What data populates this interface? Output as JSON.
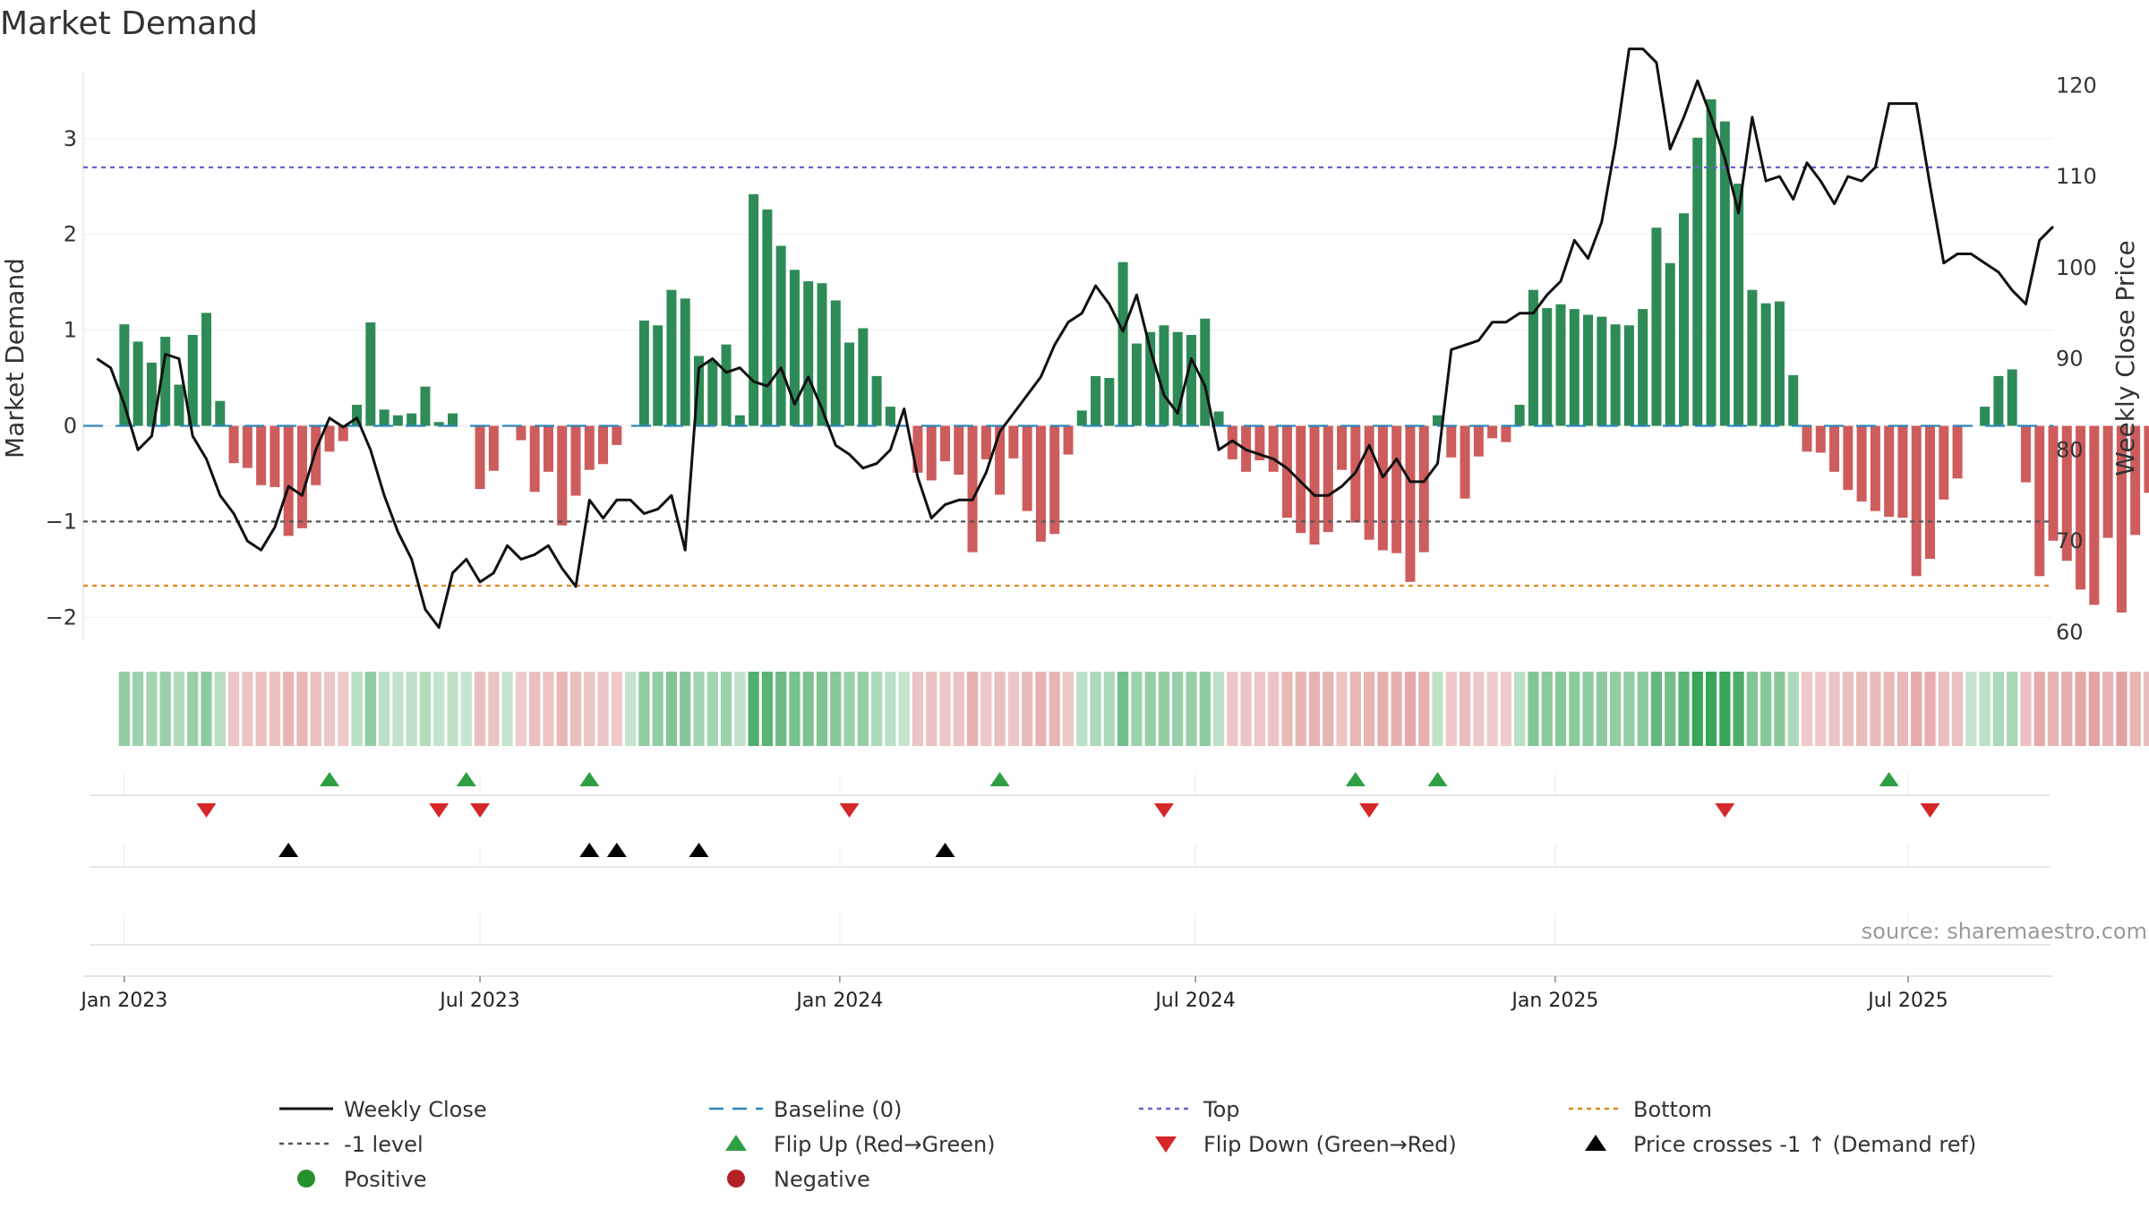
{
  "chart_data": {
    "type": "bar+line",
    "title": "Market Demand",
    "ylabel": "Market Demand",
    "y2label": "Weekly Close Price",
    "ylim": [
      -2.25,
      3.7
    ],
    "y2lim": [
      59,
      121.5
    ],
    "yticks": [
      3,
      2,
      1,
      0,
      -1,
      -2
    ],
    "yticks_labels": [
      "3",
      "2",
      "1",
      "0",
      "−1",
      "−2"
    ],
    "y2ticks": [
      120,
      110,
      100,
      90,
      80,
      70,
      60
    ],
    "xrange_weeks": [
      -3,
      141
    ],
    "xticks": [
      {
        "label": "Jan 2023",
        "week": 0
      },
      {
        "label": "Jul 2023",
        "week": 26
      },
      {
        "label": "Jan 2024",
        "week": 52.3
      },
      {
        "label": "Jul 2024",
        "week": 78.3
      },
      {
        "label": "Jan 2025",
        "week": 104.6
      },
      {
        "label": "Jul 2025",
        "week": 130.4
      }
    ],
    "levels": {
      "top": 2.7,
      "minus_one": -1,
      "bottom": -1.67,
      "baseline": 0
    },
    "demand": [
      1.06,
      0.88,
      0.66,
      0.93,
      0.43,
      0.95,
      1.18,
      0.26,
      -0.39,
      -0.44,
      -0.62,
      -0.64,
      -1.15,
      -1.07,
      -0.62,
      -0.27,
      -0.16,
      0.22,
      1.08,
      0.17,
      0.11,
      0.13,
      0.41,
      0.04,
      0.13,
      0,
      -0.66,
      -0.47,
      0,
      -0.15,
      -0.69,
      -0.48,
      -1.04,
      -0.73,
      -0.46,
      -0.4,
      -0.2,
      0,
      1.1,
      1.05,
      1.42,
      1.33,
      0.73,
      0.68,
      0.85,
      0.11,
      2.42,
      2.26,
      1.88,
      1.63,
      1.51,
      1.49,
      1.31,
      0.87,
      1.02,
      0.52,
      0.2,
      0,
      -0.49,
      -0.57,
      -0.37,
      -0.51,
      -1.32,
      -0.35,
      -0.72,
      -0.34,
      -0.89,
      -1.21,
      -1.13,
      -0.3,
      0.16,
      0.52,
      0.5,
      1.71,
      0.86,
      0.98,
      1.05,
      0.98,
      0.95,
      1.12,
      0.15,
      -0.35,
      -0.48,
      -0.36,
      -0.48,
      -0.96,
      -1.12,
      -1.24,
      -1.11,
      -0.46,
      -1.01,
      -1.19,
      -1.3,
      -1.33,
      -1.63,
      -1.32,
      0.11,
      -0.33,
      -0.76,
      -0.32,
      -0.13,
      -0.17,
      0.22,
      1.42,
      1.23,
      1.27,
      1.22,
      1.16,
      1.14,
      1.06,
      1.05,
      1.22,
      2.07,
      1.7,
      2.22,
      3.01,
      3.41,
      3.18,
      2.53,
      1.42,
      1.28,
      1.3,
      0.53,
      -0.27,
      -0.28,
      -0.48,
      -0.67,
      -0.79,
      -0.89,
      -0.95,
      -0.96,
      -1.57,
      -1.39,
      -0.77,
      -0.55,
      0,
      0.2,
      0.52,
      0.59,
      -0.59,
      -1.57,
      -1.2,
      -1.41,
      -1.71,
      -1.87,
      -1.17,
      -1.95,
      -1.14,
      -0.7
    ],
    "weekly_close": [
      [
        -2,
        90
      ],
      [
        -1,
        89
      ],
      [
        0,
        85
      ],
      [
        1,
        80
      ],
      [
        2,
        81.5
      ],
      [
        3,
        90.5
      ],
      [
        4,
        90
      ],
      [
        5,
        81.5
      ],
      [
        6,
        79
      ],
      [
        7,
        75
      ],
      [
        8,
        73
      ],
      [
        9,
        70
      ],
      [
        10,
        69
      ],
      [
        11,
        71.5
      ],
      [
        12,
        76
      ],
      [
        13,
        75
      ],
      [
        14,
        80
      ],
      [
        15,
        83.5
      ],
      [
        16,
        82.5
      ],
      [
        17,
        83.5
      ],
      [
        18,
        80
      ],
      [
        19,
        75
      ],
      [
        20,
        71
      ],
      [
        21,
        68
      ],
      [
        22,
        62.5
      ],
      [
        23,
        60.5
      ],
      [
        24,
        66.5
      ],
      [
        25,
        68
      ],
      [
        26,
        65.5
      ],
      [
        27,
        66.5
      ],
      [
        28,
        69.5
      ],
      [
        29,
        68
      ],
      [
        30,
        68.5
      ],
      [
        31,
        69.5
      ],
      [
        32,
        67
      ],
      [
        33,
        65
      ],
      [
        34,
        74.5
      ],
      [
        35,
        72.5
      ],
      [
        36,
        74.5
      ],
      [
        37,
        74.5
      ],
      [
        38,
        73
      ],
      [
        39,
        73.5
      ],
      [
        40,
        75
      ],
      [
        41,
        69
      ],
      [
        42,
        89
      ],
      [
        43,
        90
      ],
      [
        44,
        88.5
      ],
      [
        45,
        89
      ],
      [
        46,
        87.5
      ],
      [
        47,
        87
      ],
      [
        48,
        89
      ],
      [
        49,
        85
      ],
      [
        50,
        88
      ],
      [
        51,
        84.5
      ],
      [
        52,
        80.5
      ],
      [
        53,
        79.5
      ],
      [
        54,
        78
      ],
      [
        55,
        78.5
      ],
      [
        56,
        80
      ],
      [
        57,
        84.5
      ],
      [
        58,
        77
      ],
      [
        59,
        72.5
      ],
      [
        60,
        74
      ],
      [
        61,
        74.5
      ],
      [
        62,
        74.5
      ],
      [
        63,
        77.5
      ],
      [
        64,
        82
      ],
      [
        65,
        84
      ],
      [
        66,
        86
      ],
      [
        67,
        88
      ],
      [
        68,
        91.5
      ],
      [
        69,
        94
      ],
      [
        70,
        95
      ],
      [
        71,
        98
      ],
      [
        72,
        96
      ],
      [
        73,
        93
      ],
      [
        74,
        97
      ],
      [
        75,
        91
      ],
      [
        76,
        86
      ],
      [
        77,
        84
      ],
      [
        78,
        90
      ],
      [
        79,
        87
      ],
      [
        80,
        80
      ],
      [
        81,
        81
      ],
      [
        82,
        80
      ],
      [
        83,
        79.5
      ],
      [
        84,
        79
      ],
      [
        85,
        78
      ],
      [
        86,
        76.5
      ],
      [
        87,
        75
      ],
      [
        88,
        75
      ],
      [
        89,
        76
      ],
      [
        90,
        77.5
      ],
      [
        91,
        80.5
      ],
      [
        92,
        77
      ],
      [
        93,
        79
      ],
      [
        94,
        76.5
      ],
      [
        95,
        76.5
      ],
      [
        96,
        78.5
      ],
      [
        97,
        91
      ],
      [
        98,
        91.5
      ],
      [
        99,
        92
      ],
      [
        100,
        94
      ],
      [
        101,
        94
      ],
      [
        102,
        95
      ],
      [
        103,
        95
      ],
      [
        104,
        97
      ],
      [
        105,
        98.5
      ],
      [
        106,
        103
      ],
      [
        107,
        101
      ],
      [
        108,
        105
      ],
      [
        109,
        113.5
      ],
      [
        110,
        124
      ],
      [
        111,
        124
      ],
      [
        112,
        122.5
      ],
      [
        113,
        113
      ],
      [
        114,
        116.5
      ],
      [
        115,
        120.5
      ],
      [
        116,
        116.5
      ],
      [
        117,
        112
      ],
      [
        118,
        106
      ],
      [
        119,
        116.5
      ],
      [
        120,
        109.5
      ],
      [
        121,
        110
      ],
      [
        122,
        107.5
      ],
      [
        123,
        111.5
      ],
      [
        124,
        109.5
      ],
      [
        125,
        107
      ],
      [
        126,
        110
      ],
      [
        127,
        109.5
      ],
      [
        128,
        111
      ],
      [
        129,
        118
      ],
      [
        130,
        118
      ],
      [
        131,
        118
      ],
      [
        132,
        109
      ],
      [
        133,
        100.5
      ],
      [
        134,
        101.5
      ],
      [
        135,
        101.5
      ],
      [
        136,
        100.5
      ],
      [
        137,
        99.5
      ],
      [
        138,
        97.5
      ],
      [
        139,
        96
      ],
      [
        140,
        103
      ],
      [
        141,
        104.5
      ]
    ],
    "flip_up_weeks": [
      15,
      25,
      34,
      64,
      90,
      96,
      129
    ],
    "flip_down_weeks": [
      6,
      23,
      26,
      53,
      76,
      91,
      117,
      132
    ],
    "price_cross_weeks": [
      12,
      34,
      36,
      42,
      60
    ],
    "legend": [
      {
        "label": "Weekly Close",
        "symbol": "line",
        "color": "#111111"
      },
      {
        "label": "Baseline (0)",
        "symbol": "dash",
        "color": "#2e86b9"
      },
      {
        "label": "Top",
        "symbol": "dot",
        "color": "#6666cc"
      },
      {
        "label": "Bottom",
        "symbol": "dot",
        "color": "#e08a1e"
      },
      {
        "label": "-1 level",
        "symbol": "dot",
        "color": "#555555"
      },
      {
        "label": "Flip Up (Red→Green)",
        "symbol": "tri-up",
        "color": "#2ea043"
      },
      {
        "label": "Flip Down (Green→Red)",
        "symbol": "tri-down",
        "color": "#d62728"
      },
      {
        "label": "Price crosses -1 ↑ (Demand ref)",
        "symbol": "tri-up",
        "color": "#000000"
      },
      {
        "label": "Positive",
        "symbol": "circle",
        "color": "#27912b"
      },
      {
        "label": "Negative",
        "symbol": "circle",
        "color": "#b22222"
      }
    ],
    "source": "source: sharemaestro.com"
  },
  "colors": {
    "positive_bar": "#2e8b57",
    "negative_bar": "#cd5c5c",
    "line": "#111111",
    "top": "#6666cc",
    "bottom": "#e08a1e",
    "minus_one": "#555555",
    "baseline": "#2e86b9"
  }
}
